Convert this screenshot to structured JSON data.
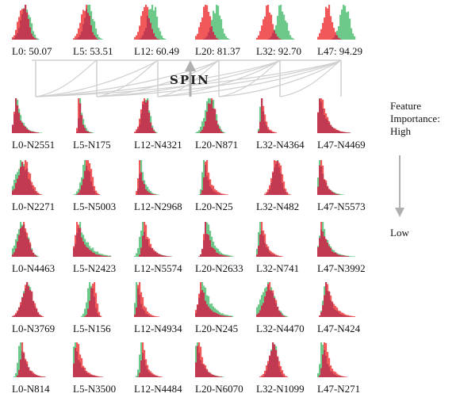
{
  "method_label": "SPIN",
  "legend": {
    "title_lines": [
      "Feature",
      "Importance:",
      "High"
    ],
    "low_label": "Low"
  },
  "colors": {
    "red": "#f0585a",
    "green": "#6cc98a",
    "overlap": "#c23a52",
    "arrow": "#b0b0b0",
    "link": "#cfcfcf"
  },
  "layers": [
    {
      "id": "L0",
      "label": "L0: 50.07"
    },
    {
      "id": "L5",
      "label": "L5: 53.51"
    },
    {
      "id": "L12",
      "label": "L12: 60.49"
    },
    {
      "id": "L20",
      "label": "L20: 81.37"
    },
    {
      "id": "L32",
      "label": "L32: 92.70"
    },
    {
      "id": "L47",
      "label": "L47: 94.29"
    }
  ],
  "neuron_rows": [
    [
      "L0-N2551",
      "L5-N175",
      "L12-N4321",
      "L20-N871",
      "L32-N4364",
      "L47-N4469"
    ],
    [
      "L0-N2271",
      "L5-N5003",
      "L12-N2968",
      "L20-N25",
      "L32-N482",
      "L47-N5573"
    ],
    [
      "L0-N4463",
      "L5-N2423",
      "L12-N5574",
      "L20-N2633",
      "L32-N741",
      "L47-N3992"
    ],
    [
      "L0-N3769",
      "L5-N156",
      "L12-N4934",
      "L20-N245",
      "L32-N4470",
      "L47-N424"
    ],
    [
      "L0-N814",
      "L5-N3500",
      "L12-N4484",
      "L20-N6070",
      "L32-N1099",
      "L47-N271"
    ]
  ]
}
